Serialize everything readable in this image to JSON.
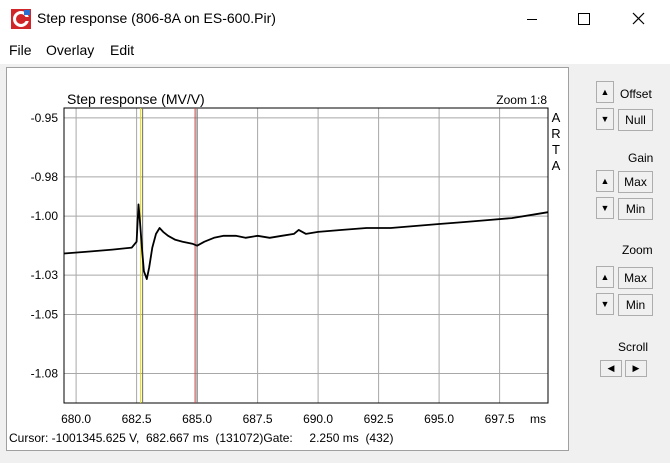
{
  "window": {
    "title": "Step response (806-8A on ES-600.Pir)"
  },
  "menu": {
    "items": [
      "File",
      "Overlay",
      "Edit"
    ]
  },
  "plot": {
    "title": "Step response (MV/V)",
    "zoom_label": "Zoom 1:8",
    "side_label": [
      "A",
      "R",
      "T",
      "A"
    ],
    "x_unit": "ms",
    "cursor_readout": "Cursor: -1001345.625 V,  682.667 ms  (131072)Gate:     2.250 ms  (432)"
  },
  "controls": {
    "offset_label": "Offset",
    "null_label": "Null",
    "gain_label": "Gain",
    "gain_max": "Max",
    "gain_min": "Min",
    "zoom_label": "Zoom",
    "zoom_max": "Max",
    "zoom_min": "Min",
    "scroll_label": "Scroll"
  },
  "chart_data": {
    "type": "line",
    "title": "Step response (MV/V)",
    "xlabel": "ms",
    "ylabel": "",
    "xlim": [
      679.5,
      699.5
    ],
    "ylim": [
      -1.095,
      -0.945
    ],
    "x_ticks": [
      680.0,
      682.5,
      685.0,
      687.5,
      690.0,
      692.5,
      695.0,
      697.5
    ],
    "x_tick_labels": [
      "680.0",
      "682.5",
      "685.0",
      "687.5",
      "690.0",
      "692.5",
      "695.0",
      "697.5"
    ],
    "y_ticks": [
      -0.95,
      -0.98,
      -1.0,
      -1.03,
      -1.05,
      -1.08
    ],
    "y_tick_labels": [
      "-0.95",
      "-0.98",
      "-1.00",
      "-1.03",
      "-1.05",
      "-1.08"
    ],
    "grid": true,
    "markers": [
      {
        "x": 682.667,
        "color": "#e8d800"
      },
      {
        "x": 684.917,
        "color": "#c04040"
      }
    ],
    "series": [
      {
        "color": "#000000",
        "x": [
          679.5,
          680.5,
          681.5,
          682.3,
          682.5,
          682.58,
          682.64,
          682.72,
          682.8,
          682.92,
          683.02,
          683.15,
          683.3,
          683.45,
          683.6,
          683.8,
          684.1,
          684.4,
          684.8,
          685.0,
          685.3,
          685.7,
          686.1,
          686.6,
          687.0,
          687.5,
          688.0,
          688.5,
          689.0,
          689.2,
          689.5,
          690.0,
          691.0,
          692.0,
          693.0,
          694.0,
          695.0,
          696.0,
          697.0,
          698.0,
          699.0,
          699.5
        ],
        "y": [
          -1.019,
          -1.018,
          -1.017,
          -1.016,
          -1.013,
          -0.994,
          -1.003,
          -1.016,
          -1.028,
          -1.032,
          -1.026,
          -1.016,
          -1.009,
          -1.006,
          -1.008,
          -1.01,
          -1.012,
          -1.013,
          -1.014,
          -1.015,
          -1.013,
          -1.011,
          -1.01,
          -1.01,
          -1.011,
          -1.01,
          -1.011,
          -1.01,
          -1.009,
          -1.007,
          -1.009,
          -1.008,
          -1.007,
          -1.006,
          -1.006,
          -1.005,
          -1.004,
          -1.003,
          -1.002,
          -1.001,
          -0.999,
          -0.998
        ]
      }
    ]
  }
}
